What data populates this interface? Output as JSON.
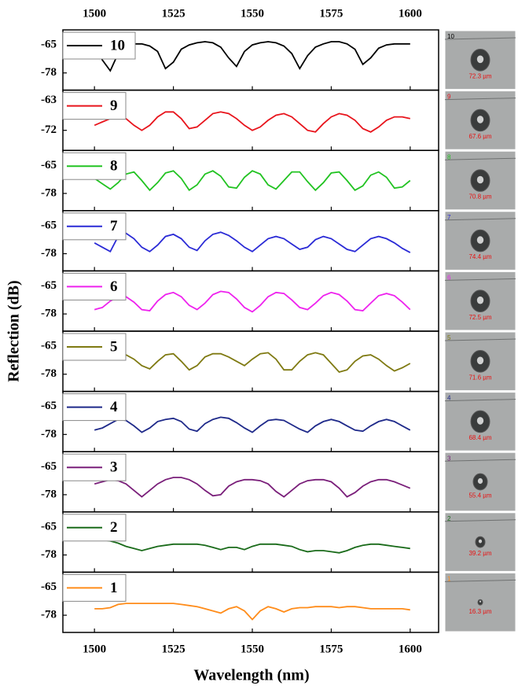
{
  "axis_titles": {
    "x": "Wavelength (nm)",
    "y": "Reflection (dB)"
  },
  "side_images": [
    {
      "label": "10",
      "size": "72.3 µm"
    },
    {
      "label": "9",
      "size": "67.6 µm"
    },
    {
      "label": "8",
      "size": "70.8 µm"
    },
    {
      "label": "7",
      "size": "74.4 µm"
    },
    {
      "label": "6",
      "size": "72.5 µm"
    },
    {
      "label": "5",
      "size": "71.6 µm"
    },
    {
      "label": "4",
      "size": "68.4 µm"
    },
    {
      "label": "3",
      "size": "55.4 µm"
    },
    {
      "label": "2",
      "size": "39.2 µm"
    },
    {
      "label": "1",
      "size": "16.3 µm"
    }
  ],
  "chart_data": [
    {
      "type": "line",
      "xlim": [
        1490,
        1609
      ],
      "xticks": [
        1500,
        1525,
        1550,
        1575,
        1600
      ],
      "ylim": [
        -86,
        -58
      ],
      "yticks": [
        -65,
        -78
      ],
      "x": [
        1490,
        1492.5,
        1495,
        1497.5,
        1500,
        1502.5,
        1505,
        1507.5,
        1510,
        1512.5,
        1515,
        1517.5,
        1520,
        1522.5,
        1525,
        1527.5,
        1530,
        1532.5,
        1535,
        1537.5,
        1540,
        1542.5,
        1545,
        1547.5,
        1550,
        1552.5,
        1555,
        1557.5,
        1560,
        1562.5,
        1565,
        1567.5,
        1570,
        1572.5,
        1575,
        1577.5,
        1580,
        1582.5,
        1585,
        1587.5,
        1590,
        1592.5,
        1595,
        1597.5,
        1600
      ],
      "series": [
        {
          "name": "10",
          "color": "#000000",
          "values": [
            -64.5,
            -64.5,
            -64.5,
            -64.5,
            -65,
            -72,
            -77,
            -69,
            -66,
            -64.5,
            -64.5,
            -65.5,
            -68,
            -76,
            -73,
            -67,
            -65,
            -64,
            -63.5,
            -64,
            -66,
            -71,
            -75,
            -68,
            -65,
            -64,
            -63.5,
            -64,
            -65.5,
            -69,
            -76,
            -70,
            -66,
            -64.5,
            -63.5,
            -63.5,
            -64.5,
            -67,
            -74,
            -71,
            -66.5,
            -65,
            -64.5,
            -64.5,
            -64.5
          ]
        }
      ]
    },
    {
      "type": "line",
      "xlim": [
        1490,
        1609
      ],
      "xticks": [
        1500,
        1525,
        1550,
        1575,
        1600
      ],
      "ylim": [
        -78,
        -60
      ],
      "yticks": [
        -63,
        -72
      ],
      "x": [
        1500,
        1502.5,
        1505,
        1507.5,
        1510,
        1512.5,
        1515,
        1517.5,
        1520,
        1522.5,
        1525,
        1527.5,
        1530,
        1532.5,
        1535,
        1537.5,
        1540,
        1542.5,
        1545,
        1547.5,
        1550,
        1552.5,
        1555,
        1557.5,
        1560,
        1562.5,
        1565,
        1567.5,
        1570,
        1572.5,
        1575,
        1577.5,
        1580,
        1582.5,
        1585,
        1587.5,
        1590,
        1592.5,
        1595,
        1597.5,
        1600
      ],
      "series": [
        {
          "name": "9",
          "color": "#e8141c",
          "values": [
            -70.5,
            -69.5,
            -68.5,
            -68,
            -68.5,
            -70.5,
            -72,
            -70.5,
            -68,
            -66.5,
            -66.5,
            -68.5,
            -71.5,
            -71,
            -69,
            -67,
            -66.5,
            -67,
            -68.5,
            -70.5,
            -72,
            -71,
            -69,
            -67.5,
            -67,
            -68,
            -70,
            -72,
            -72.5,
            -70,
            -68,
            -67,
            -67.5,
            -69,
            -71.5,
            -72.5,
            -71,
            -69,
            -68,
            -68,
            -68.5
          ]
        }
      ]
    },
    {
      "type": "line",
      "xlim": [
        1490,
        1609
      ],
      "xticks": [
        1500,
        1525,
        1550,
        1575,
        1600
      ],
      "ylim": [
        -86,
        -58
      ],
      "yticks": [
        -65,
        -78
      ],
      "x": [
        1500,
        1502.5,
        1505,
        1507.5,
        1510,
        1512.5,
        1515,
        1517.5,
        1520,
        1522.5,
        1525,
        1527.5,
        1530,
        1532.5,
        1535,
        1537.5,
        1540,
        1542.5,
        1545,
        1547.5,
        1550,
        1552.5,
        1555,
        1557.5,
        1560,
        1562.5,
        1565,
        1567.5,
        1570,
        1572.5,
        1575,
        1577.5,
        1580,
        1582.5,
        1585,
        1587.5,
        1590,
        1592.5,
        1595,
        1597.5,
        1600
      ],
      "series": [
        {
          "name": "8",
          "color": "#22c322",
          "values": [
            -71,
            -73.5,
            -76,
            -73,
            -69,
            -68,
            -72,
            -76.5,
            -73,
            -68.5,
            -67.5,
            -71,
            -76.5,
            -74,
            -69,
            -67.5,
            -70,
            -75,
            -75.5,
            -70.5,
            -67.5,
            -69,
            -74,
            -76,
            -72,
            -68,
            -68,
            -72.5,
            -76.5,
            -73,
            -68.5,
            -68,
            -72,
            -76.5,
            -74.5,
            -69.5,
            -68,
            -70.5,
            -75.5,
            -75,
            -72
          ]
        }
      ]
    },
    {
      "type": "line",
      "xlim": [
        1490,
        1609
      ],
      "xticks": [
        1500,
        1525,
        1550,
        1575,
        1600
      ],
      "ylim": [
        -86,
        -58
      ],
      "yticks": [
        -65,
        -78
      ],
      "x": [
        1500,
        1502.5,
        1505,
        1507.5,
        1510,
        1512.5,
        1515,
        1517.5,
        1520,
        1522.5,
        1525,
        1527.5,
        1530,
        1532.5,
        1535,
        1537.5,
        1540,
        1542.5,
        1545,
        1547.5,
        1550,
        1552.5,
        1555,
        1557.5,
        1560,
        1562.5,
        1565,
        1567.5,
        1570,
        1572.5,
        1575,
        1577.5,
        1580,
        1582.5,
        1585,
        1587.5,
        1590,
        1592.5,
        1595,
        1597.5,
        1600
      ],
      "series": [
        {
          "name": "7",
          "color": "#2b2bd6",
          "values": [
            -73,
            -75,
            -77,
            -70,
            -68.5,
            -71,
            -75,
            -77,
            -74,
            -70,
            -69,
            -71,
            -75,
            -76.5,
            -72,
            -69,
            -68,
            -69.5,
            -72,
            -75,
            -77,
            -74,
            -71,
            -70,
            -71,
            -73.5,
            -76,
            -75,
            -71.5,
            -70,
            -71,
            -73.5,
            -76,
            -77,
            -74,
            -71,
            -70,
            -71,
            -73,
            -75.5,
            -77.5
          ]
        }
      ]
    },
    {
      "type": "line",
      "xlim": [
        1490,
        1609
      ],
      "xticks": [
        1500,
        1525,
        1550,
        1575,
        1600
      ],
      "ylim": [
        -86,
        -58
      ],
      "yticks": [
        -65,
        -78
      ],
      "x": [
        1500,
        1502.5,
        1505,
        1507.5,
        1510,
        1512.5,
        1515,
        1517.5,
        1520,
        1522.5,
        1525,
        1527.5,
        1530,
        1532.5,
        1535,
        1537.5,
        1540,
        1542.5,
        1545,
        1547.5,
        1550,
        1552.5,
        1555,
        1557.5,
        1560,
        1562.5,
        1565,
        1567.5,
        1570,
        1572.5,
        1575,
        1577.5,
        1580,
        1582.5,
        1585,
        1587.5,
        1590,
        1592.5,
        1595,
        1597.5,
        1600
      ],
      "series": [
        {
          "name": "6",
          "color": "#ee22ee",
          "values": [
            -76,
            -75,
            -72,
            -70,
            -70,
            -72.5,
            -76,
            -76.5,
            -72,
            -69,
            -68,
            -70,
            -74,
            -76,
            -73,
            -69,
            -67.5,
            -68,
            -71,
            -75,
            -77,
            -74,
            -70,
            -68,
            -68.5,
            -71.5,
            -75,
            -76,
            -73,
            -69.5,
            -68,
            -69,
            -72,
            -76,
            -76.5,
            -73,
            -69.5,
            -68.5,
            -69.5,
            -72.5,
            -76
          ]
        }
      ]
    },
    {
      "type": "line",
      "xlim": [
        1490,
        1609
      ],
      "xticks": [
        1500,
        1525,
        1550,
        1575,
        1600
      ],
      "ylim": [
        -86,
        -58
      ],
      "yticks": [
        -65,
        -78
      ],
      "x": [
        1505,
        1507.5,
        1510,
        1512.5,
        1515,
        1517.5,
        1520,
        1522.5,
        1525,
        1527.5,
        1530,
        1532.5,
        1535,
        1537.5,
        1540,
        1542.5,
        1545,
        1547.5,
        1550,
        1552.5,
        1555,
        1557.5,
        1560,
        1562.5,
        1565,
        1567.5,
        1570,
        1572.5,
        1575,
        1577.5,
        1580,
        1582.5,
        1585,
        1587.5,
        1590,
        1592.5,
        1595,
        1597.5,
        1600
      ],
      "series": [
        {
          "name": "5",
          "color": "#7f7a12",
          "values": [
            -70,
            -70,
            -69,
            -71,
            -74,
            -75.5,
            -72,
            -69,
            -68.5,
            -72,
            -76,
            -74,
            -70,
            -68.5,
            -68.5,
            -70,
            -72,
            -74,
            -71,
            -68.5,
            -68,
            -71,
            -76,
            -76,
            -72,
            -69,
            -68,
            -69,
            -73,
            -77,
            -76,
            -72,
            -69.5,
            -69,
            -71,
            -74,
            -76.5,
            -75,
            -73
          ]
        }
      ]
    },
    {
      "type": "line",
      "xlim": [
        1490,
        1609
      ],
      "xticks": [
        1500,
        1525,
        1550,
        1575,
        1600
      ],
      "ylim": [
        -86,
        -58
      ],
      "yticks": [
        -65,
        -78
      ],
      "x": [
        1500,
        1502.5,
        1505,
        1507.5,
        1510,
        1512.5,
        1515,
        1517.5,
        1520,
        1522.5,
        1525,
        1527.5,
        1530,
        1532.5,
        1535,
        1537.5,
        1540,
        1542.5,
        1545,
        1547.5,
        1550,
        1552.5,
        1555,
        1557.5,
        1560,
        1562.5,
        1565,
        1567.5,
        1570,
        1572.5,
        1575,
        1577.5,
        1580,
        1582.5,
        1585,
        1587.5,
        1590,
        1592.5,
        1595,
        1597.5,
        1600
      ],
      "series": [
        {
          "name": "4",
          "color": "#1f2a8a",
          "values": [
            -76,
            -75,
            -73,
            -71,
            -71.5,
            -74,
            -77,
            -75,
            -72,
            -71,
            -70.5,
            -72,
            -75.5,
            -76.5,
            -73,
            -71,
            -70,
            -70.5,
            -72.5,
            -75,
            -77,
            -74,
            -71.5,
            -71,
            -71.5,
            -73.5,
            -75.5,
            -77,
            -74,
            -72,
            -71,
            -72,
            -74,
            -76,
            -76.5,
            -74,
            -72,
            -71,
            -72,
            -74,
            -76
          ]
        }
      ]
    },
    {
      "type": "line",
      "xlim": [
        1490,
        1609
      ],
      "xticks": [
        1500,
        1525,
        1550,
        1575,
        1600
      ],
      "ylim": [
        -86,
        -58
      ],
      "yticks": [
        -65,
        -78
      ],
      "x": [
        1500,
        1502.5,
        1505,
        1507.5,
        1510,
        1512.5,
        1515,
        1517.5,
        1520,
        1522.5,
        1525,
        1527.5,
        1530,
        1532.5,
        1535,
        1537.5,
        1540,
        1542.5,
        1545,
        1547.5,
        1550,
        1552.5,
        1555,
        1557.5,
        1560,
        1562.5,
        1565,
        1567.5,
        1570,
        1572.5,
        1575,
        1577.5,
        1580,
        1582.5,
        1585,
        1587.5,
        1590,
        1592.5,
        1595,
        1597.5,
        1600
      ],
      "series": [
        {
          "name": "3",
          "color": "#7a1f7a",
          "values": [
            -73,
            -72,
            -71,
            -71.5,
            -73,
            -76,
            -79,
            -76,
            -73,
            -71,
            -70,
            -70,
            -71,
            -73,
            -76,
            -78.5,
            -78,
            -74,
            -72,
            -71,
            -71,
            -71.5,
            -73,
            -76.5,
            -79,
            -76,
            -73,
            -71.5,
            -71,
            -71,
            -72,
            -75,
            -79,
            -77,
            -74,
            -72,
            -71,
            -71,
            -72,
            -73.5,
            -75
          ]
        }
      ]
    },
    {
      "type": "line",
      "xlim": [
        1490,
        1609
      ],
      "xticks": [
        1500,
        1525,
        1550,
        1575,
        1600
      ],
      "ylim": [
        -86,
        -58
      ],
      "yticks": [
        -65,
        -78
      ],
      "x": [
        1490,
        1492.5,
        1495,
        1497.5,
        1500,
        1502.5,
        1505,
        1507.5,
        1510,
        1512.5,
        1515,
        1517.5,
        1520,
        1522.5,
        1525,
        1527.5,
        1530,
        1532.5,
        1535,
        1537.5,
        1540,
        1542.5,
        1545,
        1547.5,
        1550,
        1552.5,
        1555,
        1557.5,
        1560,
        1562.5,
        1565,
        1567.5,
        1570,
        1572.5,
        1575,
        1577.5,
        1580,
        1582.5,
        1585,
        1587.5,
        1590,
        1592.5,
        1595,
        1597.5,
        1600
      ],
      "series": [
        {
          "name": "2",
          "color": "#1a6b1a",
          "values": [
            -71,
            -71,
            -71,
            -71,
            -71,
            -71,
            -71.5,
            -72.5,
            -74,
            -75,
            -76,
            -75,
            -74,
            -73.5,
            -73,
            -73,
            -73,
            -73,
            -73.5,
            -74.5,
            -75.5,
            -74.5,
            -74.5,
            -75.5,
            -74,
            -73,
            -73,
            -73,
            -73.5,
            -74,
            -75.5,
            -76.5,
            -76,
            -76,
            -76.5,
            -77,
            -76,
            -74.5,
            -73.5,
            -73,
            -73,
            -73.5,
            -74,
            -74.5,
            -75
          ]
        }
      ]
    },
    {
      "type": "line",
      "xlim": [
        1490,
        1609
      ],
      "xticks": [
        1500,
        1525,
        1550,
        1575,
        1600
      ],
      "ylim": [
        -86,
        -58
      ],
      "yticks": [
        -65,
        -78
      ],
      "x": [
        1500,
        1502.5,
        1505,
        1507.5,
        1510,
        1512.5,
        1515,
        1517.5,
        1520,
        1522.5,
        1525,
        1527.5,
        1530,
        1532.5,
        1535,
        1537.5,
        1540,
        1542.5,
        1545,
        1547.5,
        1550,
        1552.5,
        1555,
        1557.5,
        1560,
        1562.5,
        1565,
        1567.5,
        1570,
        1572.5,
        1575,
        1577.5,
        1580,
        1582.5,
        1585,
        1587.5,
        1590,
        1592.5,
        1595,
        1597.5,
        1600
      ],
      "series": [
        {
          "name": "1",
          "color": "#ff8c1a",
          "values": [
            -75,
            -75,
            -74.5,
            -73,
            -72.5,
            -72.5,
            -72.5,
            -72.5,
            -72.5,
            -72.5,
            -72.5,
            -73,
            -73.5,
            -74,
            -75,
            -76,
            -77,
            -75,
            -74,
            -76,
            -80,
            -76,
            -74,
            -75,
            -76.5,
            -75,
            -74.5,
            -74.5,
            -74,
            -74,
            -74,
            -74.5,
            -74,
            -74,
            -74.5,
            -75,
            -75,
            -75,
            -75,
            -75,
            -75.5
          ]
        }
      ]
    }
  ]
}
